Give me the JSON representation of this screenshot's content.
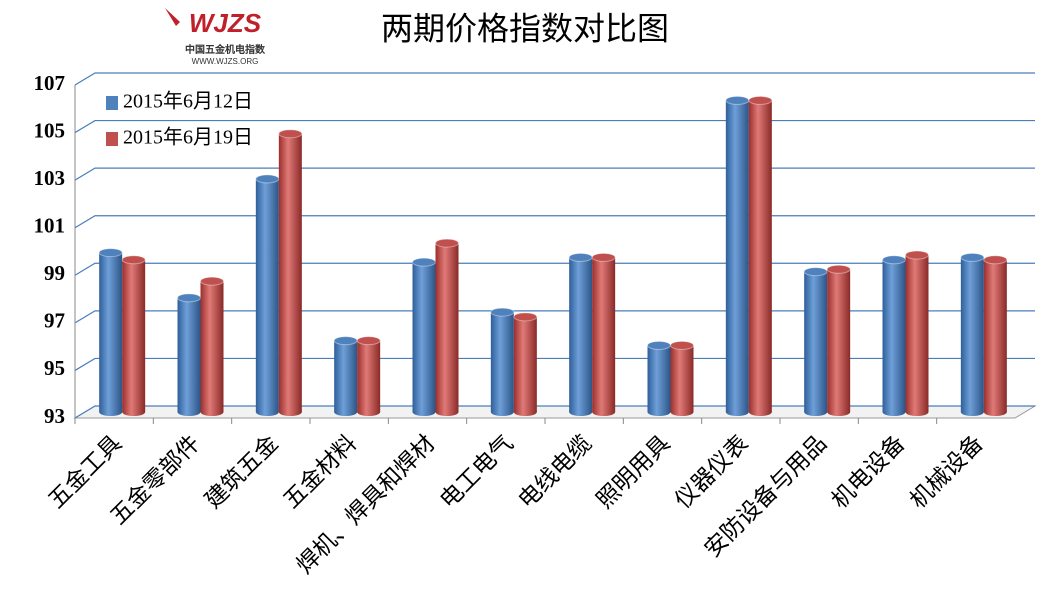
{
  "logo": {
    "mark": "WJZS",
    "name": "中国五金机电指数",
    "site": "WWW.WJZS.ORG"
  },
  "chart_data": {
    "type": "bar",
    "title": "两期价格指数对比图",
    "categories": [
      "五金工具",
      "五金零部件",
      "建筑五金",
      "五金材料",
      "焊机、焊具和焊材",
      "电工电气",
      "电线电缆",
      "照明用具",
      "仪器仪表",
      "安防设备与用品",
      "机电设备",
      "机械设备"
    ],
    "series": [
      {
        "name": "2015年6月12日",
        "color": "#4f81bd",
        "values": [
          99.7,
          97.8,
          102.8,
          96.0,
          99.3,
          97.2,
          99.5,
          95.8,
          106.1,
          98.9,
          99.4,
          99.5
        ]
      },
      {
        "name": "2015年6月19日",
        "color": "#c0504d",
        "values": [
          99.4,
          98.5,
          104.7,
          96.0,
          100.1,
          97.0,
          99.5,
          95.8,
          106.1,
          99.0,
          99.6,
          99.4
        ]
      }
    ],
    "ylim": [
      93,
      107
    ],
    "yticks": [
      93,
      95,
      97,
      99,
      101,
      103,
      105,
      107
    ],
    "grid": true,
    "legend": "top-left"
  }
}
